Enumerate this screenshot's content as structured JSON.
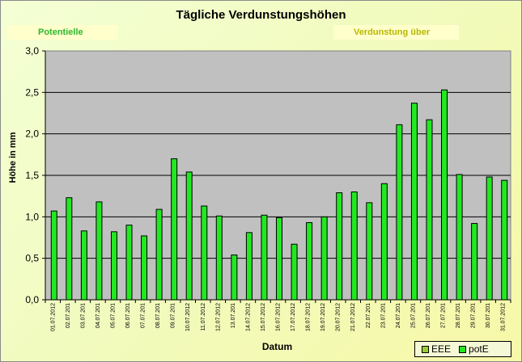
{
  "chart_data": {
    "type": "bar",
    "title": "Tägliche Verdunstungshöhen",
    "notes": [
      "Potentielle",
      "Verdunstung über"
    ],
    "xlabel": "Datum",
    "ylabel": "Höhe in mm",
    "ylim": [
      0,
      3
    ],
    "yticks": [
      "0,0",
      "0,5",
      "1,0",
      "1,5",
      "2,0",
      "2,5",
      "3,0"
    ],
    "grid": true,
    "legend_position": "bottom-right",
    "categories": [
      "01.07.2012",
      "02.07.201",
      "03.07.201",
      "04.07.201",
      "05.07.201",
      "06.07.201",
      "07.07.201",
      "08.07.201",
      "09.07.201",
      "10.07.2012",
      "11.07.2012",
      "12.07.2012",
      "13.07.201",
      "14.07.2012",
      "15.07.2012",
      "16.07.2012",
      "17.07.2012",
      "18.07.2012",
      "19.07.2012",
      "20.07.2012",
      "21.07.2012",
      "22.07.201",
      "23.07.201",
      "24.07.201",
      "25.07.201",
      "26.07.201",
      "27.07.201",
      "28.07.201",
      "29.07.201",
      "30.07.201",
      "31.07.2012"
    ],
    "series": [
      {
        "name": "EEE",
        "color": "#9ACD32",
        "values": [
          0,
          0,
          0,
          0,
          0,
          0,
          0,
          0,
          0,
          0,
          0,
          0,
          0,
          0,
          0,
          0,
          0,
          0,
          0,
          0,
          0,
          0,
          0,
          0,
          0,
          0,
          0,
          0,
          0,
          0,
          0
        ]
      },
      {
        "name": "potE",
        "color": "#22E822",
        "values": [
          1.07,
          1.23,
          0.83,
          1.18,
          0.82,
          0.9,
          0.77,
          1.09,
          1.7,
          1.54,
          1.13,
          1.01,
          0.54,
          0.81,
          1.02,
          0.99,
          0.67,
          0.93,
          1.0,
          1.29,
          1.3,
          1.17,
          1.4,
          2.11,
          2.37,
          2.17,
          2.53,
          1.51,
          0.92,
          1.48,
          1.44
        ]
      }
    ],
    "plot_background": "#C0C0C0"
  }
}
